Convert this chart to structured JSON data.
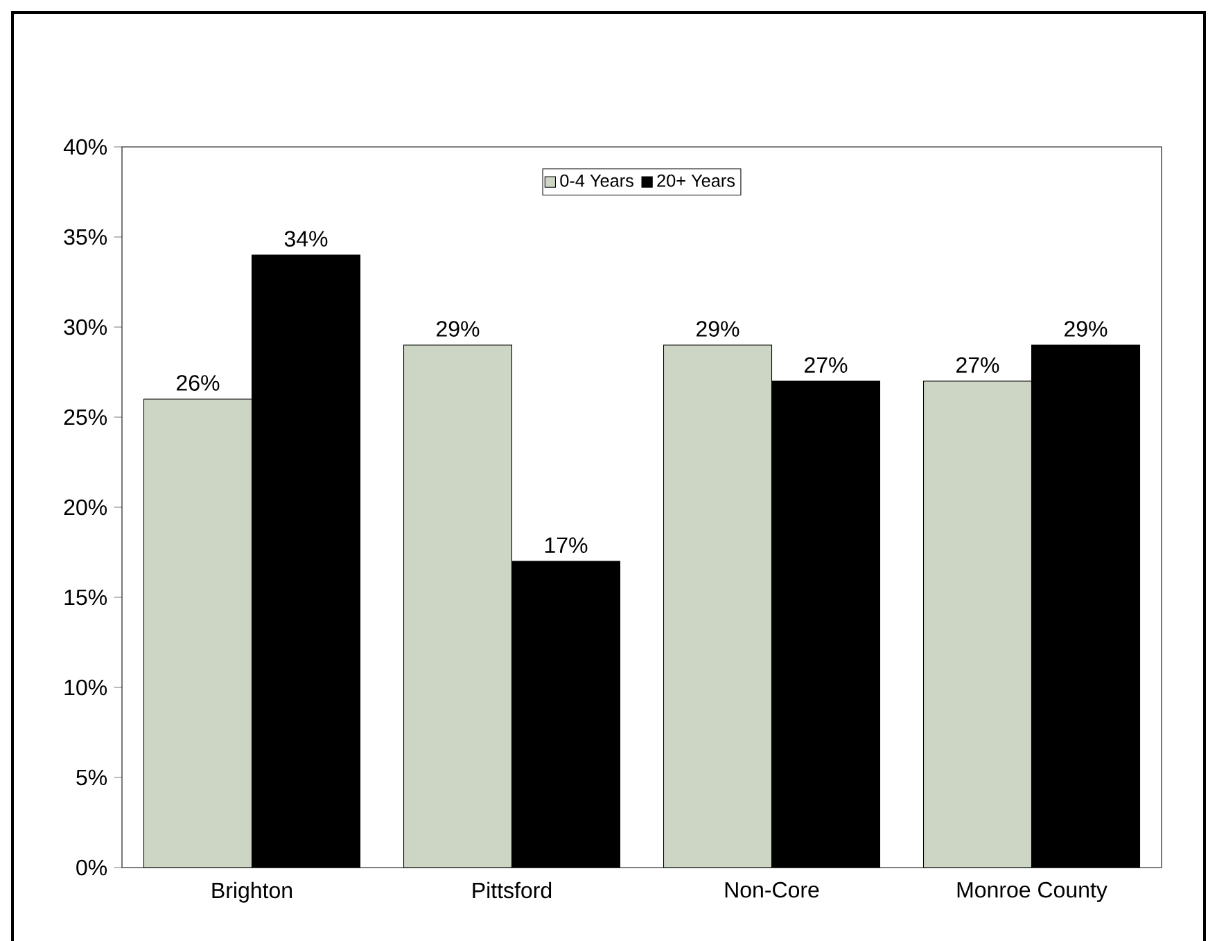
{
  "chart_data": {
    "type": "bar",
    "categories": [
      "Brighton",
      "Pittsford",
      "Non-Core",
      "Monroe County"
    ],
    "series": [
      {
        "name": "0-4 Years",
        "color": "#cdd6c4",
        "values": [
          26,
          29,
          29,
          27
        ],
        "value_labels": [
          "26%",
          "29%",
          "29%",
          "27%"
        ]
      },
      {
        "name": "20+ Years",
        "color": "#000000",
        "values": [
          34,
          17,
          27,
          29
        ],
        "value_labels": [
          "34%",
          "17%",
          "27%",
          "29%"
        ]
      }
    ],
    "ylim": [
      0,
      40
    ],
    "yticks": [
      {
        "value": 0,
        "label": "0%"
      },
      {
        "value": 5,
        "label": "5%"
      },
      {
        "value": 10,
        "label": "10%"
      },
      {
        "value": 15,
        "label": "15%"
      },
      {
        "value": 20,
        "label": "20%"
      },
      {
        "value": 25,
        "label": "25%"
      },
      {
        "value": 30,
        "label": "30%"
      },
      {
        "value": 35,
        "label": "35%"
      },
      {
        "value": 40,
        "label": "40%"
      }
    ],
    "grid": false,
    "legend": "top"
  }
}
